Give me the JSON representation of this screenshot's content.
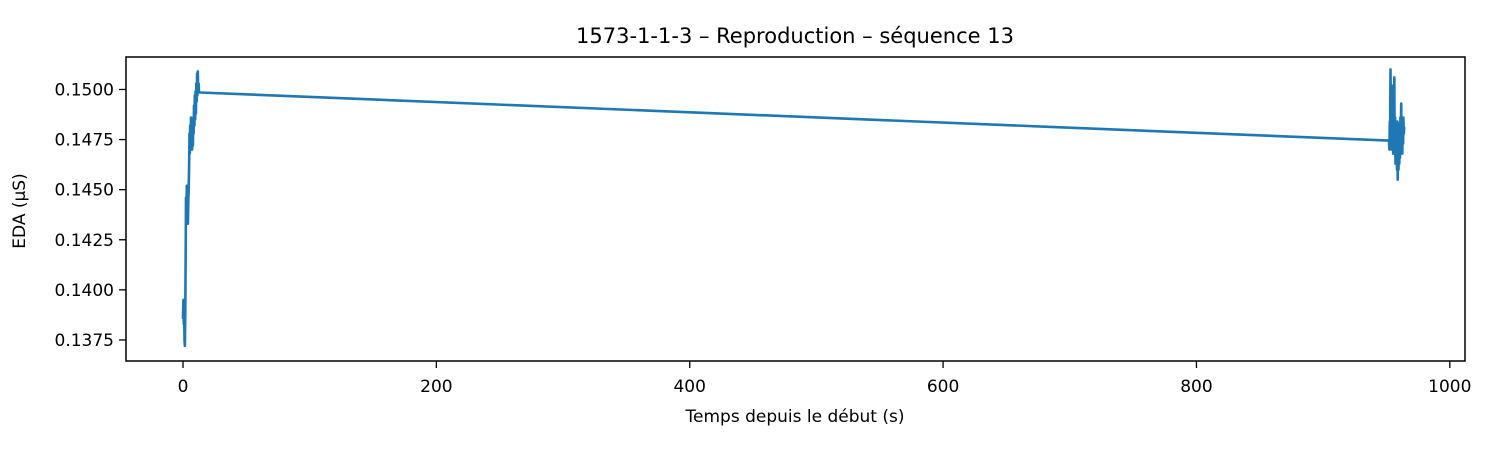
{
  "chart_data": {
    "type": "line",
    "title": "1573-1-1-3 – Reproduction – séquence 13",
    "xlabel": "Temps depuis le début (s)",
    "ylabel": "EDA (µS)",
    "xlim": [
      -45,
      1012
    ],
    "ylim": [
      0.13645,
      0.15162
    ],
    "xticks": [
      0,
      200,
      400,
      600,
      800,
      1000
    ],
    "yticks": [
      0.1375,
      0.14,
      0.1425,
      0.145,
      0.1475,
      0.15
    ],
    "xtick_labels": [
      "0",
      "200",
      "400",
      "600",
      "800",
      "1000"
    ],
    "ytick_labels": [
      "0.1375",
      "0.1400",
      "0.1425",
      "0.1450",
      "0.1475",
      "0.1500"
    ],
    "grid": false,
    "legend": "none",
    "series": [
      {
        "color": "#1f77b4",
        "x": [
          0.0,
          0.3,
          0.6,
          0.9,
          1.2,
          1.5,
          1.8,
          2.1,
          2.4,
          2.7,
          3.0,
          3.3,
          3.6,
          3.9,
          4.2,
          4.5,
          4.8,
          5.1,
          5.4,
          5.7,
          6.0,
          6.3,
          6.6,
          6.9,
          7.2,
          7.5,
          7.8,
          8.1,
          8.4,
          8.7,
          9.0,
          9.3,
          9.6,
          9.9,
          10.2,
          10.5,
          10.8,
          11.1,
          11.4,
          11.7,
          12.0,
          12.3,
          12.6,
          13.0,
          13.5,
          952.0,
          952.3,
          952.6,
          952.9,
          953.2,
          953.5,
          953.8,
          954.1,
          954.4,
          954.7,
          955.0,
          955.3,
          955.6,
          955.9,
          956.2,
          956.5,
          956.8,
          957.1,
          957.4,
          957.7,
          958.0,
          958.3,
          958.6,
          958.9,
          959.2,
          959.5,
          959.8,
          960.1,
          960.4,
          960.7,
          961.0,
          961.3,
          961.6,
          961.9,
          962.2,
          962.5,
          962.8,
          963.1,
          963.4,
          963.7,
          964.0
        ],
        "y": [
          0.1386,
          0.1395,
          0.1383,
          0.1392,
          0.1375,
          0.1372,
          0.139,
          0.142,
          0.1446,
          0.1436,
          0.1452,
          0.1438,
          0.1449,
          0.1433,
          0.1445,
          0.145,
          0.1462,
          0.1478,
          0.1468,
          0.1482,
          0.1471,
          0.1486,
          0.1474,
          0.1481,
          0.147,
          0.1484,
          0.1472,
          0.1486,
          0.1478,
          0.1492,
          0.1482,
          0.1497,
          0.1485,
          0.1499,
          0.1488,
          0.1503,
          0.1494,
          0.1508,
          0.1497,
          0.1509,
          0.1499,
          0.1503,
          0.1499,
          0.14985,
          0.14985,
          0.14745,
          0.147,
          0.1484,
          0.1478,
          0.151,
          0.1485,
          0.1494,
          0.147,
          0.1502,
          0.1482,
          0.1497,
          0.1468,
          0.1492,
          0.1477,
          0.1506,
          0.147,
          0.1486,
          0.1463,
          0.1482,
          0.1466,
          0.1478,
          0.146,
          0.1484,
          0.1455,
          0.1472,
          0.146,
          0.1478,
          0.1463,
          0.1483,
          0.1466,
          0.1486,
          0.147,
          0.1493,
          0.1476,
          0.1482,
          0.1468,
          0.1484,
          0.1473,
          0.1486,
          0.1478,
          0.1481
        ]
      }
    ]
  }
}
